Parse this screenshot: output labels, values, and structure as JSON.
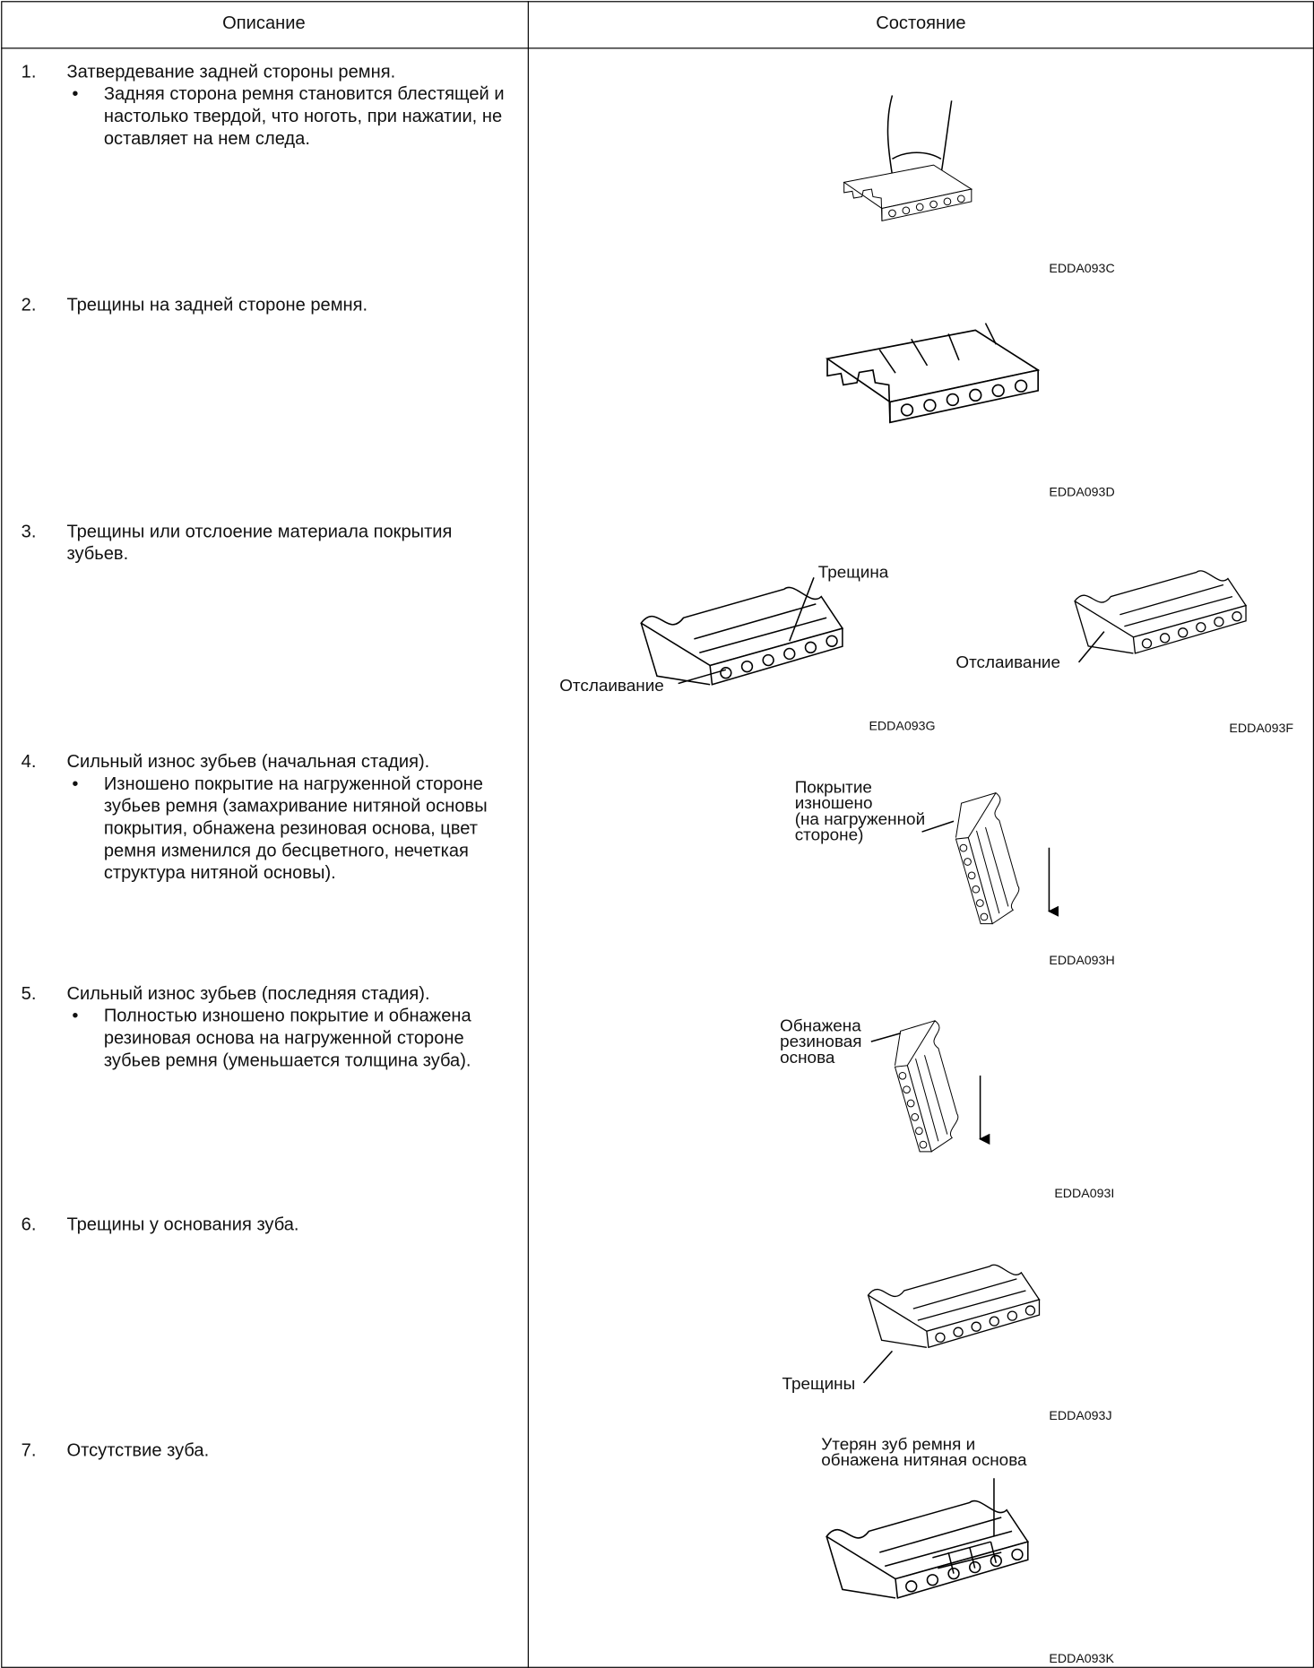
{
  "header": {
    "columns": [
      "Описание",
      "Состояние"
    ]
  },
  "rows": [
    {
      "number": "1.",
      "title": "Затвердевание задней стороны ремня.",
      "bullet": "Задняя сторона ремня становится блестящей и настолько твердой, что ноготь, при нажатии, не оставляет на нем следа.",
      "figures": [
        {
          "code": "EDDA093C"
        }
      ]
    },
    {
      "number": "2.",
      "title": "Трещины на задней стороне ремня.",
      "figures": [
        {
          "code": "EDDA093D"
        }
      ]
    },
    {
      "number": "3.",
      "title": "Трещины или отслоение материала покрытия зубьев.",
      "figures": [
        {
          "labels": [
            "Трещина",
            "Отслаивание"
          ],
          "code": "EDDA093G"
        },
        {
          "labels": [
            "Отслаивание"
          ],
          "code": "EDDA093F"
        }
      ]
    },
    {
      "number": "4.",
      "title": "Сильный износ зубьев (начальная стадия).",
      "bullet": "Изношено покрытие на нагруженной стороне зубьев ремня (замахривание нитяной основы покрытия, обнажена резиновая основа, цвет ремня изменился до бесцветного, нечеткая структура нитяной основы).",
      "figures": [
        {
          "label_lines": [
            "Покрытие",
            "изношено",
            "(на нагруженной",
            "стороне)"
          ],
          "code": "EDDA093H"
        }
      ]
    },
    {
      "number": "5.",
      "title": "Сильный износ зубьев (последняя стадия).",
      "bullet": "Полностью изношено покрытие и обнажена резиновая основа на нагруженной стороне зубьев ремня (уменьшается толщина зуба).",
      "figures": [
        {
          "label_lines": [
            "Обнажена",
            "резиновая",
            "основа"
          ],
          "code": "EDDA093I"
        }
      ]
    },
    {
      "number": "6.",
      "title": "Трещины у основания зуба.",
      "figures": [
        {
          "labels": [
            "Трещины"
          ],
          "code": "EDDA093J"
        }
      ]
    },
    {
      "number": "7.",
      "title": "Отсутствие зуба.",
      "figures": [
        {
          "label_lines": [
            "Утерян зуб ремня и",
            "обнажена нитяная основа"
          ],
          "code": "EDDA093K"
        }
      ]
    }
  ]
}
